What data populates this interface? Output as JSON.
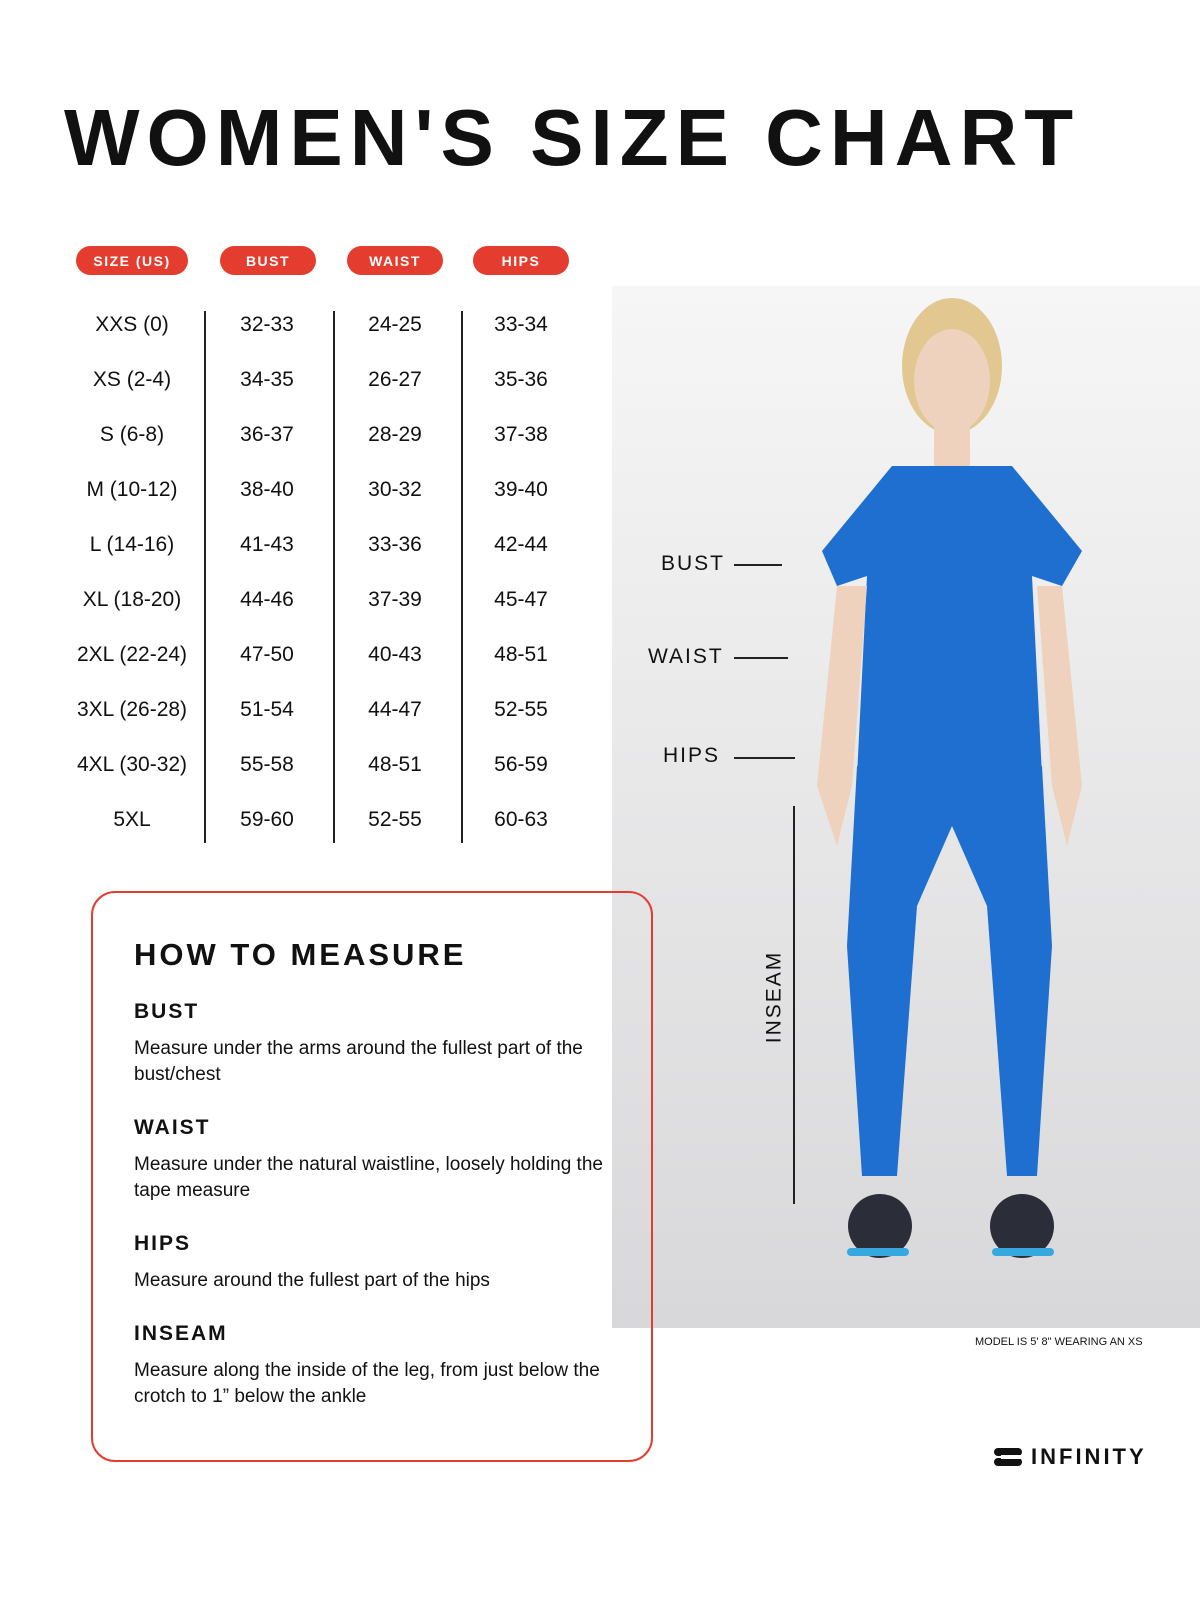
{
  "title": "WOMEN'S SIZE CHART",
  "headers": [
    "SIZE (US)",
    "BUST",
    "WAIST",
    "HIPS"
  ],
  "rows": [
    [
      "XXS (0)",
      "32-33",
      "24-25",
      "33-34"
    ],
    [
      "XS (2-4)",
      "34-35",
      "26-27",
      "35-36"
    ],
    [
      "S (6-8)",
      "36-37",
      "28-29",
      "37-38"
    ],
    [
      "M (10-12)",
      "38-40",
      "30-32",
      "39-40"
    ],
    [
      "L (14-16)",
      "41-43",
      "33-36",
      "42-44"
    ],
    [
      "XL (18-20)",
      "44-46",
      "37-39",
      "45-47"
    ],
    [
      "2XL (22-24)",
      "47-50",
      "40-43",
      "48-51"
    ],
    [
      "3XL (26-28)",
      "51-54",
      "44-47",
      "52-55"
    ],
    [
      "4XL (30-32)",
      "55-58",
      "48-51",
      "56-59"
    ],
    [
      "5XL",
      "59-60",
      "52-55",
      "60-63"
    ]
  ],
  "figure_labels": {
    "bust": "BUST",
    "waist": "WAIST",
    "hips": "HIPS",
    "inseam": "INSEAM"
  },
  "model_caption": "MODEL IS 5' 8\" WEARING AN XS",
  "how_to": {
    "title": "HOW TO MEASURE",
    "sections": [
      {
        "heading": "BUST",
        "text": "Measure under the arms around the fullest part of the bust/chest"
      },
      {
        "heading": "WAIST",
        "text": "Measure under the natural waistline, loosely holding the tape measure"
      },
      {
        "heading": "HIPS",
        "text": "Measure around the fullest part of the hips"
      },
      {
        "heading": "INSEAM",
        "text": "Measure along the inside of the leg, from just below the crotch to 1” below the ankle"
      }
    ]
  },
  "brand": "INFINITY",
  "colors": {
    "accent": "#e43d30",
    "scrub_blue": "#1f6fd0"
  }
}
